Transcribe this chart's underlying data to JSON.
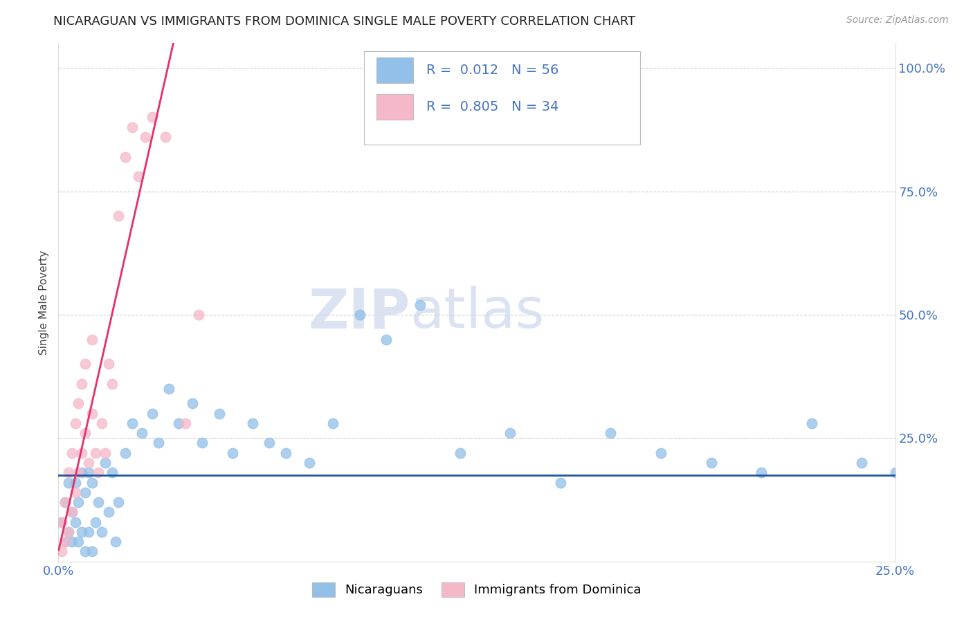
{
  "title": "NICARAGUAN VS IMMIGRANTS FROM DOMINICA SINGLE MALE POVERTY CORRELATION CHART",
  "source": "Source: ZipAtlas.com",
  "ylabel": "Single Male Poverty",
  "xlim": [
    0.0,
    0.25
  ],
  "ylim": [
    0.0,
    1.05
  ],
  "xtick_positions": [
    0.0,
    0.05,
    0.1,
    0.15,
    0.2,
    0.25
  ],
  "xticklabels": [
    "0.0%",
    "",
    "",
    "",
    "",
    "25.0%"
  ],
  "ytick_positions": [
    0.0,
    0.25,
    0.5,
    0.75,
    1.0
  ],
  "yticklabels_right": [
    "",
    "25.0%",
    "50.0%",
    "75.0%",
    "100.0%"
  ],
  "legend_r1": "0.012",
  "legend_n1": "56",
  "legend_r2": "0.805",
  "legend_n2": "34",
  "blue_color": "#92c0e8",
  "pink_color": "#f5b8c8",
  "blue_line_color": "#2255a0",
  "pink_line_color": "#e8306a",
  "watermark_zip": "ZIP",
  "watermark_atlas": "atlas",
  "blue_scatter_x": [
    0.001,
    0.002,
    0.002,
    0.003,
    0.003,
    0.004,
    0.004,
    0.005,
    0.005,
    0.006,
    0.006,
    0.007,
    0.007,
    0.008,
    0.008,
    0.009,
    0.009,
    0.01,
    0.01,
    0.011,
    0.012,
    0.013,
    0.014,
    0.015,
    0.016,
    0.017,
    0.018,
    0.02,
    0.022,
    0.025,
    0.028,
    0.03,
    0.033,
    0.036,
    0.04,
    0.043,
    0.048,
    0.052,
    0.058,
    0.063,
    0.068,
    0.075,
    0.082,
    0.09,
    0.098,
    0.108,
    0.12,
    0.135,
    0.15,
    0.165,
    0.18,
    0.195,
    0.21,
    0.225,
    0.24,
    0.25
  ],
  "blue_scatter_y": [
    0.08,
    0.04,
    0.12,
    0.06,
    0.16,
    0.04,
    0.1,
    0.08,
    0.16,
    0.04,
    0.12,
    0.06,
    0.18,
    0.02,
    0.14,
    0.06,
    0.18,
    0.02,
    0.16,
    0.08,
    0.12,
    0.06,
    0.2,
    0.1,
    0.18,
    0.04,
    0.12,
    0.22,
    0.28,
    0.26,
    0.3,
    0.24,
    0.35,
    0.28,
    0.32,
    0.24,
    0.3,
    0.22,
    0.28,
    0.24,
    0.22,
    0.2,
    0.28,
    0.5,
    0.45,
    0.52,
    0.22,
    0.26,
    0.16,
    0.26,
    0.22,
    0.2,
    0.18,
    0.28,
    0.2,
    0.18
  ],
  "pink_scatter_x": [
    0.001,
    0.001,
    0.002,
    0.002,
    0.003,
    0.003,
    0.004,
    0.004,
    0.005,
    0.005,
    0.006,
    0.006,
    0.007,
    0.007,
    0.008,
    0.008,
    0.009,
    0.01,
    0.01,
    0.011,
    0.012,
    0.013,
    0.014,
    0.015,
    0.016,
    0.018,
    0.02,
    0.022,
    0.024,
    0.026,
    0.028,
    0.032,
    0.038,
    0.042
  ],
  "pink_scatter_y": [
    0.02,
    0.08,
    0.04,
    0.12,
    0.06,
    0.18,
    0.1,
    0.22,
    0.14,
    0.28,
    0.18,
    0.32,
    0.22,
    0.36,
    0.26,
    0.4,
    0.2,
    0.3,
    0.45,
    0.22,
    0.18,
    0.28,
    0.22,
    0.4,
    0.36,
    0.7,
    0.82,
    0.88,
    0.78,
    0.86,
    0.9,
    0.86,
    0.28,
    0.5
  ],
  "blue_line_y_intercept": 0.175,
  "blue_line_slope": 0.0,
  "pink_line_x_start": -0.004,
  "pink_line_x_end": 0.05,
  "pink_line_slope": 30.0,
  "pink_line_intercept": 0.02
}
